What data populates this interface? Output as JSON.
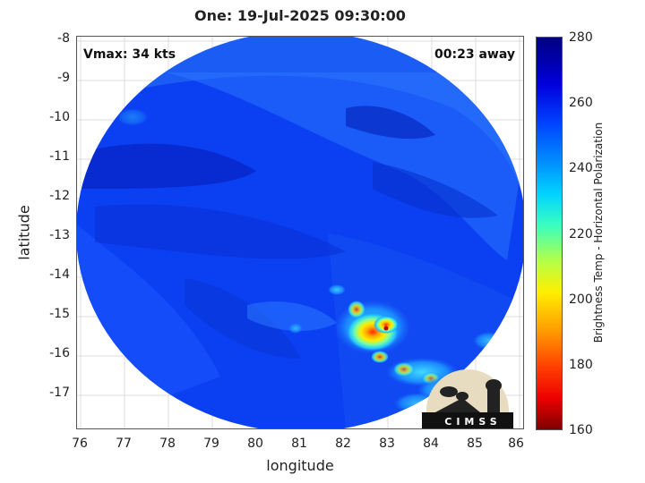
{
  "title": "One: 19-Jul-2025 09:30:00",
  "vmax_label": "Vmax: 34 kts",
  "time_label": "00:23 away",
  "logo_text": "CIMSS",
  "x_axis": {
    "label": "longitude",
    "ticks": [
      "76",
      "77",
      "78",
      "79",
      "80",
      "81",
      "82",
      "83",
      "84",
      "85",
      "86"
    ],
    "range": [
      75.9,
      86.1
    ]
  },
  "y_axis": {
    "label": "latitude",
    "ticks": [
      "-8",
      "-9",
      "-10",
      "-11",
      "-12",
      "-13",
      "-14",
      "-15",
      "-16",
      "-17"
    ],
    "range": [
      -17.9,
      -7.9
    ]
  },
  "colorbar": {
    "label": "Brightness Temp - Horizontal Polarization",
    "ticks": [
      "280",
      "260",
      "240",
      "220",
      "200",
      "180",
      "160"
    ],
    "range": [
      160,
      280
    ]
  },
  "colors": {
    "cold_core": "#ff2a00",
    "warm": "#ffee00",
    "background_field": "#0a3ff0",
    "swath_edge": "#3a7bff"
  }
}
